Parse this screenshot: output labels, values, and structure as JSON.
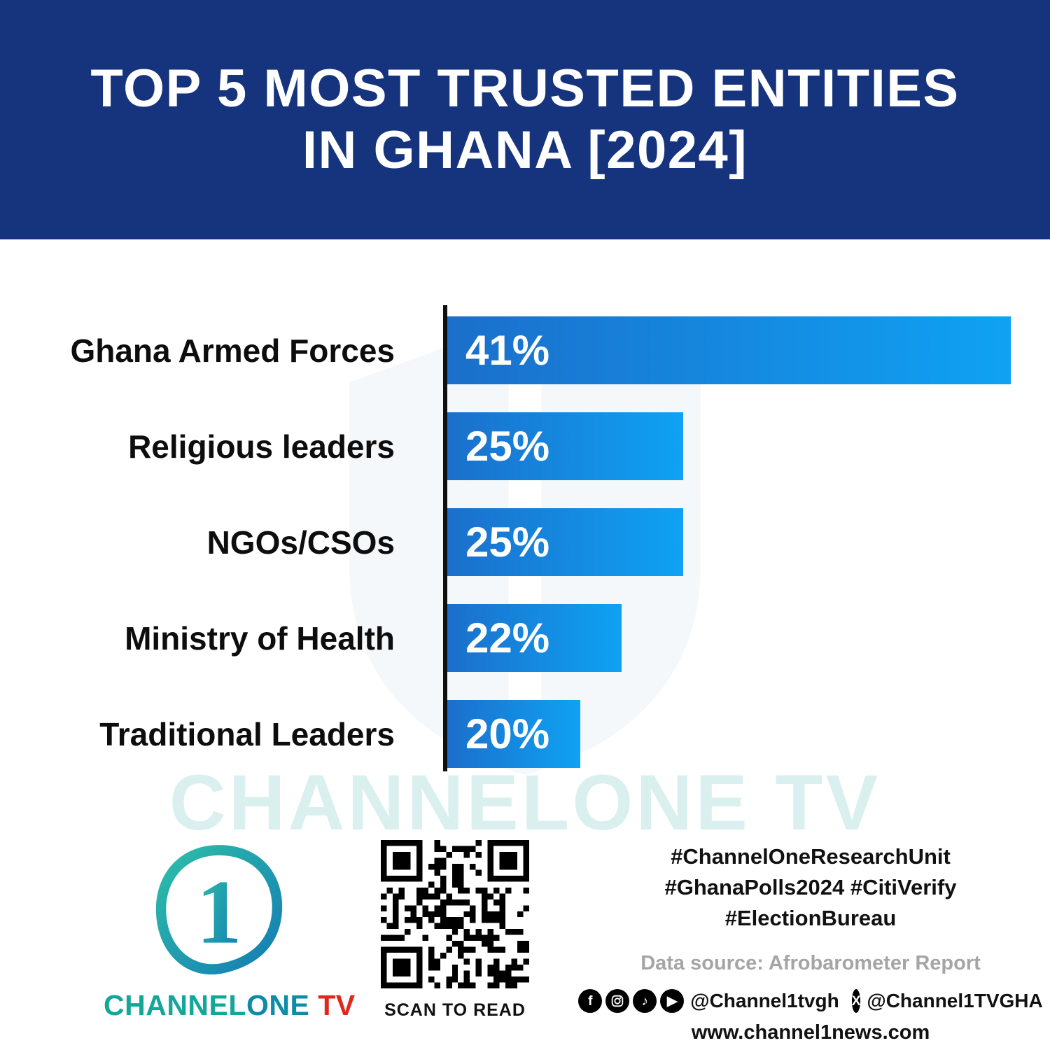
{
  "header": {
    "title_line1": "TOP 5 MOST TRUSTED ENTITIES",
    "title_line2": "IN GHANA [2024]"
  },
  "chart_data": {
    "type": "bar",
    "orientation": "horizontal",
    "title": "TOP 5 MOST TRUSTED ENTITIES IN GHANA [2024]",
    "categories": [
      "Ghana Armed Forces",
      "Religious leaders",
      "NGOs/CSOs",
      "Ministry of Health",
      "Traditional Leaders"
    ],
    "values": [
      41,
      25,
      25,
      22,
      20
    ],
    "value_labels": [
      "41%",
      "25%",
      "25%",
      "22%",
      "20%"
    ],
    "xlabel": "",
    "ylabel": "",
    "xlim": [
      0,
      41
    ],
    "grid": false,
    "legend": false,
    "bar_gradient": [
      "#1B6FCB",
      "#0FA2F3"
    ],
    "axis_color": "#101010"
  },
  "watermark": {
    "text": "CHANNELONE TV"
  },
  "footer": {
    "logo_numeral": "1",
    "brand": {
      "part1": "CHANNEL",
      "part2": "ONE",
      "part3": " TV"
    },
    "qr_caption": "SCAN TO READ",
    "hashtags": [
      "#ChannelOneResearchUnit",
      "#GhanaPolls2024 #CitiVerify",
      "#ElectionBureau"
    ],
    "data_source": "Data source: Afrobarometer Report",
    "handle_main": "@Channel1tvgh",
    "handle_x": "@Channel1TVGHA",
    "website": "www.channel1news.com"
  },
  "colors": {
    "header_bg": "#16337E",
    "accent_teal": "#13A79A",
    "accent_red": "#E2261D",
    "bar_start": "#1B6FCB",
    "bar_end": "#0FA2F3"
  }
}
